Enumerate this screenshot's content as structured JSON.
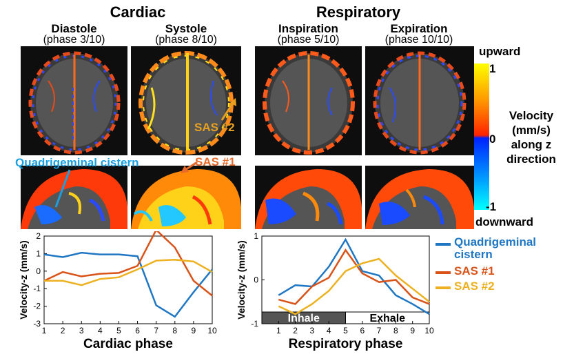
{
  "headers": {
    "cardiac": "Cardiac",
    "respiratory": "Respiratory"
  },
  "columns": [
    {
      "label": "Diastole",
      "phase": "(phase 3/10)"
    },
    {
      "label": "Systole",
      "phase": "(phase 8/10)"
    },
    {
      "label": "Inspiration",
      "phase": "(phase 5/10)"
    },
    {
      "label": "Expiration",
      "phase": "(phase 10/10)"
    }
  ],
  "colorbar": {
    "top": "upward",
    "bottom": "downward",
    "tick_max": "1",
    "tick_mid": "0",
    "tick_min": "-1",
    "title_lines": [
      "Velocity",
      "(mm/s)",
      "along z",
      "direction"
    ],
    "colors": {
      "upper": "#ffff00",
      "mid_pos": "#ff3300",
      "mid_neg": "#0033ff",
      "lower": "#00ffff"
    }
  },
  "annotations": {
    "sas2": "SAS #2",
    "sas1": "SAS #1",
    "quadrigeminal": "Quadrigeminal cistern"
  },
  "legend": {
    "items": [
      {
        "line1": "Quadrigeminal",
        "line2": "cistern",
        "color": "#1f77c4"
      },
      {
        "line1": "SAS #1",
        "line2": "",
        "color": "#d95319"
      },
      {
        "line1": "SAS #2",
        "line2": "",
        "color": "#edb120"
      }
    ]
  },
  "chart_data": [
    {
      "type": "line",
      "xlabel": "Cardiac phase",
      "ylabel": "Velocity-z (mm/s)",
      "x": [
        1,
        2,
        3,
        4,
        5,
        6,
        7,
        8,
        9,
        10
      ],
      "xlim": [
        1,
        10
      ],
      "ylim": [
        -3,
        2
      ],
      "yticks": [
        -3,
        -2,
        -1,
        0,
        1,
        2
      ],
      "series": [
        {
          "name": "Quadrigeminal cistern",
          "color": "#1f77c4",
          "values": [
            0.95,
            0.8,
            1.05,
            0.95,
            0.95,
            0.85,
            -1.95,
            -2.6,
            -1.2,
            0.1
          ]
        },
        {
          "name": "SAS #1",
          "color": "#d95319",
          "values": [
            -0.55,
            -0.05,
            -0.3,
            -0.15,
            -0.1,
            0.3,
            2.35,
            1.35,
            -0.55,
            -1.4
          ]
        },
        {
          "name": "SAS #2",
          "color": "#edb120",
          "values": [
            -0.55,
            -0.55,
            -0.8,
            -0.45,
            -0.35,
            0.1,
            0.6,
            0.65,
            0.55,
            -0.05
          ]
        }
      ]
    },
    {
      "type": "line",
      "xlabel": "Respiratory phase",
      "ylabel": "Velocity-z (mm/s)",
      "x": [
        1,
        2,
        3,
        4,
        5,
        6,
        7,
        8,
        9,
        10
      ],
      "xlim": [
        0,
        10
      ],
      "ylim": [
        -1,
        1
      ],
      "yticks": [
        -1,
        0,
        1
      ],
      "bands": [
        {
          "label": "Inhale",
          "from": 0,
          "to": 5,
          "fill": "#555555",
          "text": "#ffffff"
        },
        {
          "label": "Exhale",
          "from": 5,
          "to": 10,
          "fill": "#ffffff",
          "text": "#000000"
        }
      ],
      "series": [
        {
          "name": "Quadrigeminal cistern",
          "color": "#1f77c4",
          "values": [
            -0.35,
            -0.12,
            -0.15,
            0.3,
            0.92,
            0.2,
            0.1,
            -0.35,
            -0.55,
            -0.78
          ]
        },
        {
          "name": "SAS #1",
          "color": "#d95319",
          "values": [
            -0.45,
            -0.55,
            -0.15,
            0.05,
            0.68,
            0.15,
            -0.05,
            0.0,
            -0.4,
            -0.55
          ]
        },
        {
          "name": "SAS #2",
          "color": "#edb120",
          "values": [
            -0.6,
            -0.78,
            -0.55,
            -0.25,
            0.2,
            0.38,
            0.48,
            0.1,
            -0.2,
            -0.5
          ]
        }
      ]
    }
  ]
}
